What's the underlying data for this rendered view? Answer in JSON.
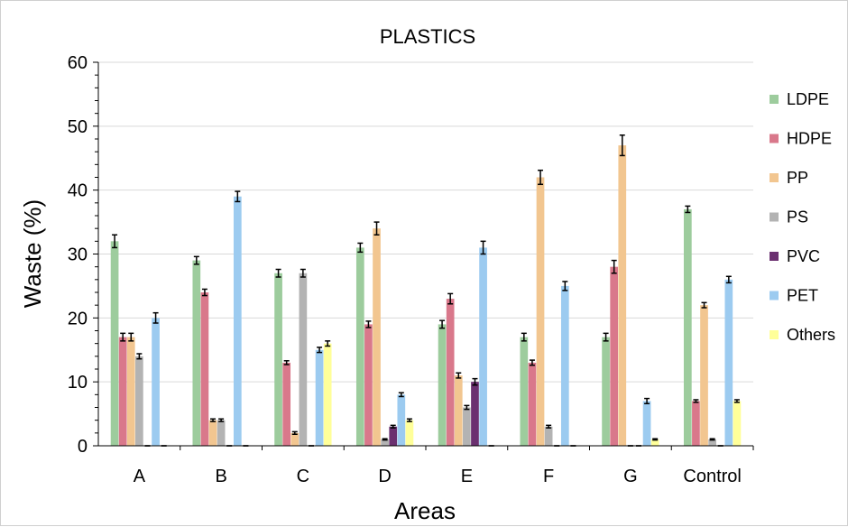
{
  "chart_data": {
    "type": "bar",
    "title": "PLASTICS",
    "xlabel": "Areas",
    "ylabel": "Waste (%)",
    "ylim": [
      0,
      60
    ],
    "yticks": [
      0,
      10,
      20,
      30,
      40,
      50,
      60
    ],
    "grid": true,
    "legend_position": "right",
    "categories": [
      "A",
      "B",
      "C",
      "D",
      "E",
      "F",
      "G",
      "Control"
    ],
    "series": [
      {
        "name": "LDPE",
        "color": "#9dcc9d",
        "values": [
          32,
          29,
          27,
          31,
          19,
          17,
          17,
          37
        ],
        "errors": [
          1,
          0.6,
          0.6,
          0.7,
          0.6,
          0.6,
          0.6,
          0.5
        ]
      },
      {
        "name": "HDPE",
        "color": "#d9788b",
        "values": [
          17,
          24,
          13,
          19,
          23,
          13,
          28,
          7
        ],
        "errors": [
          0.6,
          0.5,
          0.3,
          0.5,
          0.8,
          0.4,
          1,
          0.2
        ]
      },
      {
        "name": "PP",
        "color": "#f2c690",
        "values": [
          17,
          4,
          2,
          34,
          11,
          42,
          47,
          22
        ],
        "errors": [
          0.6,
          0.2,
          0.2,
          1,
          0.4,
          1.1,
          1.6,
          0.4
        ]
      },
      {
        "name": "PS",
        "color": "#b3b3b3",
        "values": [
          14,
          4,
          27,
          1,
          6,
          3,
          0,
          1
        ],
        "errors": [
          0.4,
          0.2,
          0.6,
          0.1,
          0.3,
          0.2,
          0,
          0.1
        ]
      },
      {
        "name": "PVC",
        "color": "#6b3070",
        "values": [
          0,
          0,
          0,
          3,
          10,
          0,
          0,
          0
        ],
        "errors": [
          0,
          0,
          0,
          0.2,
          0.5,
          0,
          0,
          0
        ]
      },
      {
        "name": "PET",
        "color": "#9ccbf0",
        "values": [
          20,
          39,
          15,
          8,
          31,
          25,
          7,
          26
        ],
        "errors": [
          0.8,
          0.8,
          0.4,
          0.3,
          1,
          0.7,
          0.4,
          0.5
        ]
      },
      {
        "name": "Others",
        "color": "#ffff99",
        "values": [
          0,
          0,
          16,
          4,
          0,
          0,
          1,
          7
        ],
        "errors": [
          0,
          0,
          0.4,
          0.2,
          0,
          0,
          0.1,
          0.2
        ]
      }
    ]
  }
}
